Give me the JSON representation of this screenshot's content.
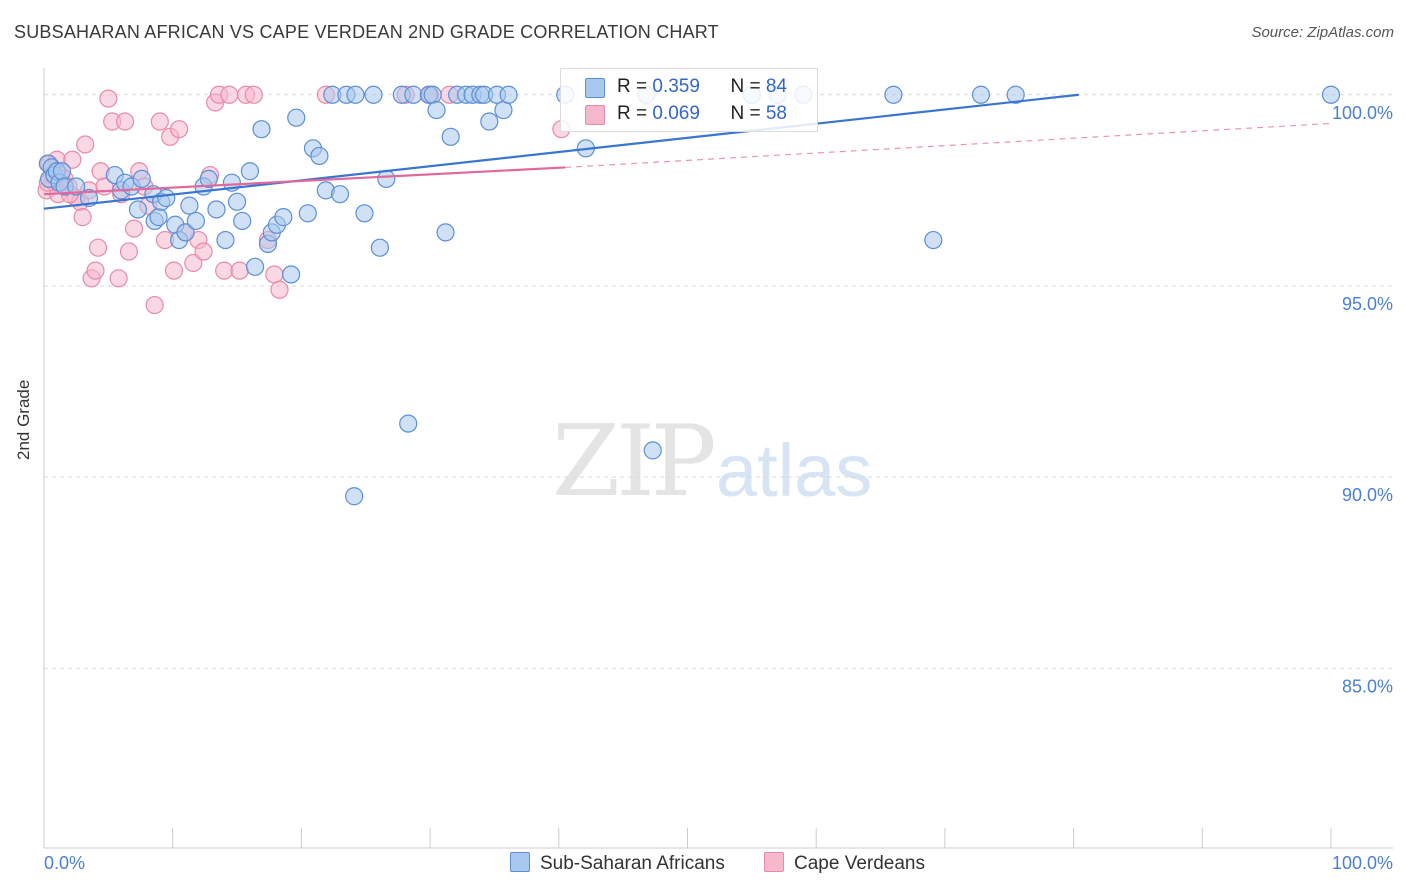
{
  "title": "SUBSAHARAN AFRICAN VS CAPE VERDEAN 2ND GRADE CORRELATION CHART",
  "source": "Source: ZipAtlas.com",
  "watermark": {
    "zip": "ZIP",
    "atlas": "atlas"
  },
  "colors": {
    "blue_fill": "#a9c8ef",
    "blue_stroke": "#5b8fd6",
    "blue_line": "#3a75d0",
    "pink_fill": "#f6b8cc",
    "pink_stroke": "#e88aa8",
    "pink_line": "#e0689a",
    "tick_label": "#4a7fd4",
    "grid": "#d9d9d9"
  },
  "legend": {
    "rows": [
      {
        "r_label": "R = ",
        "r_value": "0.359",
        "n_label": "N = ",
        "n_value": "84"
      },
      {
        "r_label": "R = ",
        "r_value": "0.069",
        "n_label": "N = ",
        "n_value": "58"
      }
    ]
  },
  "bottom_legend": {
    "blue": "Sub-Saharan Africans",
    "pink": "Cape Verdeans"
  },
  "chart_data": {
    "type": "scatter",
    "title": "SUBSAHARAN AFRICAN VS CAPE VERDEAN 2ND GRADE CORRELATION CHART",
    "xlabel": "",
    "ylabel": "2nd Grade",
    "xlim": [
      0,
      100
    ],
    "ylim": [
      80.3,
      100.7
    ],
    "x_tick_labels": [
      "0.0%",
      "100.0%"
    ],
    "y_ticks": [
      100,
      95,
      90,
      85
    ],
    "y_tick_labels": [
      "100.0%",
      "95.0%",
      "90.0%",
      "85.0%"
    ],
    "series": [
      {
        "name": "Sub-Saharan Africans",
        "color": "#5b8fd6",
        "trend": {
          "x": [
            0,
            80.4
          ],
          "y": [
            97.02,
            100.0
          ]
        },
        "points": [
          [
            0.3,
            98.2
          ],
          [
            0.4,
            97.8
          ],
          [
            0.6,
            98.1
          ],
          [
            0.8,
            97.9
          ],
          [
            1.0,
            98.0
          ],
          [
            1.2,
            97.7
          ],
          [
            1.4,
            98.0
          ],
          [
            1.6,
            97.6
          ],
          [
            2.5,
            97.6
          ],
          [
            3.5,
            97.3
          ],
          [
            5.5,
            97.9
          ],
          [
            6.0,
            97.5
          ],
          [
            6.3,
            97.7
          ],
          [
            6.8,
            97.6
          ],
          [
            7.3,
            97.0
          ],
          [
            7.6,
            97.8
          ],
          [
            8.5,
            97.4
          ],
          [
            8.6,
            96.7
          ],
          [
            8.9,
            96.8
          ],
          [
            9.1,
            97.2
          ],
          [
            9.5,
            97.3
          ],
          [
            10.2,
            96.6
          ],
          [
            10.5,
            96.2
          ],
          [
            11.0,
            96.4
          ],
          [
            11.3,
            97.1
          ],
          [
            11.8,
            96.7
          ],
          [
            12.4,
            97.6
          ],
          [
            12.8,
            97.8
          ],
          [
            13.4,
            97.0
          ],
          [
            14.1,
            96.2
          ],
          [
            14.6,
            97.7
          ],
          [
            15.0,
            97.2
          ],
          [
            15.4,
            96.7
          ],
          [
            16.0,
            98.0
          ],
          [
            16.4,
            95.5
          ],
          [
            16.9,
            99.1
          ],
          [
            17.4,
            96.1
          ],
          [
            17.7,
            96.4
          ],
          [
            18.1,
            96.6
          ],
          [
            18.6,
            96.8
          ],
          [
            19.2,
            95.3
          ],
          [
            19.6,
            99.4
          ],
          [
            20.5,
            96.9
          ],
          [
            20.9,
            98.6
          ],
          [
            21.4,
            98.4
          ],
          [
            21.9,
            97.5
          ],
          [
            22.4,
            100.0
          ],
          [
            23.0,
            97.4
          ],
          [
            23.5,
            100.0
          ],
          [
            24.2,
            100.0
          ],
          [
            24.9,
            96.9
          ],
          [
            25.6,
            100.0
          ],
          [
            26.1,
            96.0
          ],
          [
            26.6,
            97.8
          ],
          [
            27.8,
            100.0
          ],
          [
            28.3,
            91.4
          ],
          [
            28.7,
            100.0
          ],
          [
            29.9,
            100.0
          ],
          [
            30.2,
            100.0
          ],
          [
            30.5,
            99.6
          ],
          [
            31.2,
            96.4
          ],
          [
            31.6,
            98.9
          ],
          [
            32.1,
            100.0
          ],
          [
            32.8,
            100.0
          ],
          [
            33.3,
            100.0
          ],
          [
            33.9,
            100.0
          ],
          [
            34.2,
            100.0
          ],
          [
            34.6,
            99.3
          ],
          [
            35.2,
            100.0
          ],
          [
            35.7,
            99.6
          ],
          [
            36.1,
            100.0
          ],
          [
            24.1,
            89.5
          ],
          [
            40.5,
            100.0
          ],
          [
            42.1,
            98.6
          ],
          [
            46.8,
            100.0
          ],
          [
            47.3,
            90.7
          ],
          [
            55.0,
            100.0
          ],
          [
            57.0,
            100.0
          ],
          [
            59.0,
            100.0
          ],
          [
            66.0,
            100.0
          ],
          [
            69.1,
            96.2
          ],
          [
            72.8,
            100.0
          ],
          [
            75.5,
            100.0
          ],
          [
            100.0,
            100.0
          ]
        ]
      },
      {
        "name": "Cape Verdeans",
        "color": "#e88aa8",
        "trend": {
          "x": [
            0,
            40.5
          ],
          "y": [
            97.4,
            98.1
          ]
        },
        "trend_extension": {
          "x": [
            40.5,
            100
          ],
          "y": [
            98.1,
            99.25
          ]
        },
        "points": [
          [
            0.2,
            97.5
          ],
          [
            0.4,
            98.2
          ],
          [
            0.6,
            97.9
          ],
          [
            0.8,
            97.7
          ],
          [
            1.0,
            98.3
          ],
          [
            1.1,
            97.4
          ],
          [
            1.3,
            97.9
          ],
          [
            1.6,
            97.8
          ],
          [
            1.9,
            97.6
          ],
          [
            2.2,
            98.3
          ],
          [
            2.5,
            97.3
          ],
          [
            2.8,
            97.2
          ],
          [
            3.0,
            96.8
          ],
          [
            3.2,
            98.7
          ],
          [
            3.5,
            97.5
          ],
          [
            3.7,
            95.2
          ],
          [
            4.0,
            95.4
          ],
          [
            4.2,
            96.0
          ],
          [
            4.4,
            98.0
          ],
          [
            4.7,
            97.6
          ],
          [
            5.0,
            99.9
          ],
          [
            5.3,
            99.3
          ],
          [
            5.8,
            95.2
          ],
          [
            6.0,
            97.4
          ],
          [
            6.3,
            99.3
          ],
          [
            6.6,
            95.9
          ],
          [
            7.0,
            96.5
          ],
          [
            7.4,
            98.0
          ],
          [
            7.8,
            97.6
          ],
          [
            8.1,
            97.1
          ],
          [
            8.6,
            94.5
          ],
          [
            9.0,
            99.3
          ],
          [
            9.4,
            96.2
          ],
          [
            9.8,
            98.9
          ],
          [
            10.1,
            95.4
          ],
          [
            10.5,
            99.1
          ],
          [
            11.0,
            96.4
          ],
          [
            11.6,
            95.6
          ],
          [
            12.0,
            96.2
          ],
          [
            12.4,
            95.9
          ],
          [
            12.9,
            97.9
          ],
          [
            13.3,
            99.8
          ],
          [
            13.6,
            100.0
          ],
          [
            14.0,
            95.4
          ],
          [
            14.4,
            100.0
          ],
          [
            15.2,
            95.4
          ],
          [
            15.7,
            100.0
          ],
          [
            16.3,
            100.0
          ],
          [
            17.4,
            96.2
          ],
          [
            17.9,
            95.3
          ],
          [
            18.3,
            94.9
          ],
          [
            21.9,
            100.0
          ],
          [
            28.1,
            100.0
          ],
          [
            30.0,
            100.0
          ],
          [
            31.5,
            100.0
          ],
          [
            40.2,
            99.1
          ],
          [
            0.3,
            97.7
          ],
          [
            2.0,
            97.4
          ]
        ]
      }
    ]
  }
}
